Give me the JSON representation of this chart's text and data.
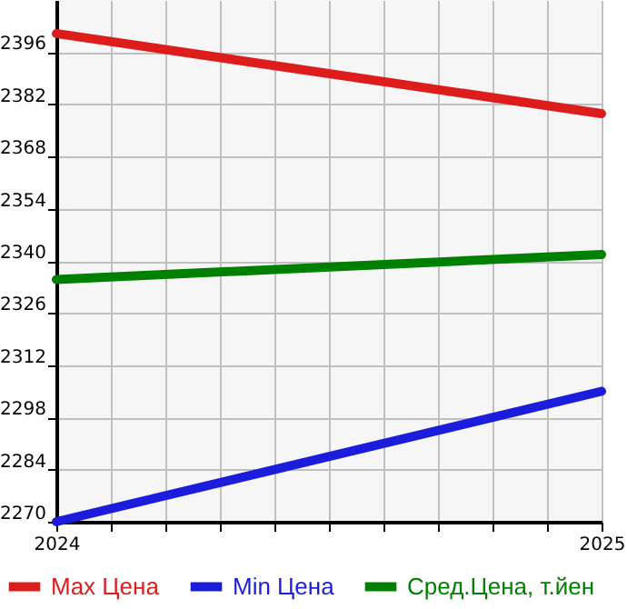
{
  "chart_data": {
    "type": "line",
    "x": [
      2024,
      2025
    ],
    "series": [
      {
        "name": "Max Цена",
        "color": "#dd1c1c",
        "values": [
          2401,
          2379.5
        ]
      },
      {
        "name": "Min Цена",
        "color": "#1c1cdd",
        "values": [
          2270,
          2305
        ]
      },
      {
        "name": "Сред.Цена, т.йен",
        "color": "#008000",
        "values": [
          2335,
          2341.7
        ]
      }
    ],
    "xlim": [
      2024,
      2025
    ],
    "xticks": [
      2024,
      {
        "value": 2024.1,
        "label": null
      },
      {
        "value": 2024.2,
        "label": null
      },
      {
        "value": 2024.3,
        "label": null
      },
      {
        "value": 2024.4,
        "label": null
      },
      {
        "value": 2024.5,
        "label": null
      },
      {
        "value": 2024.6,
        "label": null
      },
      {
        "value": 2024.7,
        "label": null
      },
      {
        "value": 2024.8,
        "label": null
      },
      {
        "value": 2024.9,
        "label": null
      },
      2025
    ],
    "ylim": [
      2270,
      2410
    ],
    "yticks": [
      2270,
      2284,
      2298,
      2312,
      2326,
      2340,
      2354,
      2368,
      2382,
      2396
    ],
    "grid": true,
    "legend": "bottom",
    "marker": "none",
    "line_style": "solid"
  }
}
